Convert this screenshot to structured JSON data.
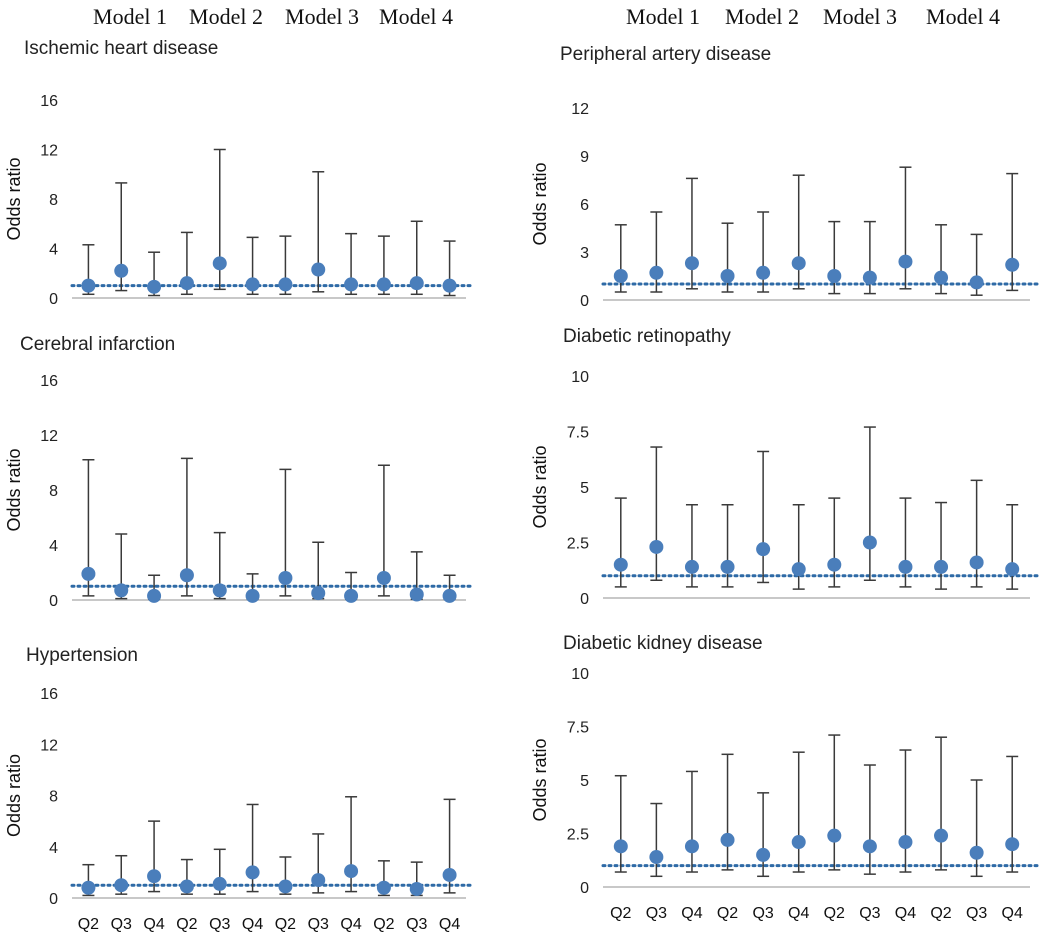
{
  "model_headers": {
    "left": [
      "Model 1",
      "Model 2",
      "Model 3",
      "Model 4"
    ],
    "right": [
      "Model 1",
      "Model 2",
      "Model 3",
      "Model 4"
    ]
  },
  "colors": {
    "marker": "#4a7ebb",
    "reference_line": "#2e6aa6",
    "error_bar": "#3a3a3a",
    "axis": "#a6a6a6"
  },
  "chart_data": [
    {
      "type": "scatter",
      "title": "Ischemic heart disease",
      "ylabel": "Odds ratio",
      "ylim": [
        0,
        16
      ],
      "yticks": [
        "0",
        "4",
        "8",
        "12",
        "16"
      ],
      "reference_line": 1,
      "categories": [
        "Q2",
        "Q3",
        "Q4",
        "Q2",
        "Q3",
        "Q4",
        "Q2",
        "Q3",
        "Q4",
        "Q2",
        "Q3",
        "Q4"
      ],
      "values": [
        1.0,
        2.2,
        0.9,
        1.2,
        2.8,
        1.1,
        1.1,
        2.3,
        1.1,
        1.1,
        1.2,
        1.0
      ],
      "upper": [
        4.3,
        9.3,
        3.7,
        5.3,
        12.0,
        4.9,
        5.0,
        10.2,
        5.2,
        5.0,
        6.2,
        4.6
      ],
      "lower": [
        0.3,
        0.6,
        0.2,
        0.3,
        0.7,
        0.3,
        0.3,
        0.5,
        0.3,
        0.3,
        0.3,
        0.2
      ],
      "show_category_labels": false
    },
    {
      "type": "scatter",
      "title": "Cerebral infarction",
      "ylabel": "Odds ratio",
      "ylim": [
        0,
        16
      ],
      "yticks": [
        "0",
        "4",
        "8",
        "12",
        "16"
      ],
      "reference_line": 1,
      "categories": [
        "Q2",
        "Q3",
        "Q4",
        "Q2",
        "Q3",
        "Q4",
        "Q2",
        "Q3",
        "Q4",
        "Q2",
        "Q3",
        "Q4"
      ],
      "values": [
        1.9,
        0.7,
        0.3,
        1.8,
        0.7,
        0.3,
        1.6,
        0.5,
        0.3,
        1.6,
        0.4,
        0.3
      ],
      "upper": [
        10.2,
        4.8,
        1.8,
        10.3,
        4.9,
        1.9,
        9.5,
        4.2,
        2.0,
        9.8,
        3.5,
        1.8
      ],
      "lower": [
        0.3,
        0.1,
        0.05,
        0.3,
        0.1,
        0.05,
        0.3,
        0.1,
        0.05,
        0.3,
        0.05,
        0.05
      ],
      "show_category_labels": false
    },
    {
      "type": "scatter",
      "title": "Hypertension",
      "ylabel": "Odds ratio",
      "ylim": [
        0,
        16
      ],
      "yticks": [
        "0",
        "4",
        "8",
        "12",
        "16"
      ],
      "reference_line": 1,
      "categories": [
        "Q2",
        "Q3",
        "Q4",
        "Q2",
        "Q3",
        "Q4",
        "Q2",
        "Q3",
        "Q4",
        "Q2",
        "Q3",
        "Q4"
      ],
      "values": [
        0.8,
        1.0,
        1.7,
        0.9,
        1.1,
        2.0,
        0.9,
        1.4,
        2.1,
        0.8,
        0.7,
        1.8
      ],
      "upper": [
        2.6,
        3.3,
        6.0,
        3.0,
        3.8,
        7.3,
        3.2,
        5.0,
        7.9,
        2.9,
        2.8,
        7.7
      ],
      "lower": [
        0.2,
        0.3,
        0.5,
        0.3,
        0.3,
        0.5,
        0.3,
        0.4,
        0.5,
        0.2,
        0.2,
        0.4
      ],
      "show_category_labels": true
    },
    {
      "type": "scatter",
      "title": "Peripheral artery disease",
      "ylabel": "Odds ratio",
      "ylim": [
        0,
        12
      ],
      "yticks": [
        "0",
        "3",
        "6",
        "9",
        "12"
      ],
      "reference_line": 1,
      "categories": [
        "Q2",
        "Q3",
        "Q4",
        "Q2",
        "Q3",
        "Q4",
        "Q2",
        "Q3",
        "Q4",
        "Q2",
        "Q3",
        "Q4"
      ],
      "values": [
        1.5,
        1.7,
        2.3,
        1.5,
        1.7,
        2.3,
        1.5,
        1.4,
        2.4,
        1.4,
        1.1,
        2.2
      ],
      "upper": [
        4.7,
        5.5,
        7.6,
        4.8,
        5.5,
        7.8,
        4.9,
        4.9,
        8.3,
        4.7,
        4.1,
        7.9
      ],
      "lower": [
        0.5,
        0.5,
        0.7,
        0.5,
        0.5,
        0.7,
        0.4,
        0.4,
        0.7,
        0.4,
        0.3,
        0.6
      ],
      "show_category_labels": false
    },
    {
      "type": "scatter",
      "title": "Diabetic retinopathy",
      "ylabel": "Odds ratio",
      "ylim": [
        0,
        10
      ],
      "yticks": [
        "0",
        "2.5",
        "5",
        "7.5",
        "10"
      ],
      "reference_line": 1,
      "categories": [
        "Q2",
        "Q3",
        "Q4",
        "Q2",
        "Q3",
        "Q4",
        "Q2",
        "Q3",
        "Q4",
        "Q2",
        "Q3",
        "Q4"
      ],
      "values": [
        1.5,
        2.3,
        1.4,
        1.4,
        2.2,
        1.3,
        1.5,
        2.5,
        1.4,
        1.4,
        1.6,
        1.3
      ],
      "upper": [
        4.5,
        6.8,
        4.2,
        4.2,
        6.6,
        4.2,
        4.5,
        7.7,
        4.5,
        4.3,
        5.3,
        4.2
      ],
      "lower": [
        0.5,
        0.8,
        0.5,
        0.5,
        0.7,
        0.4,
        0.5,
        0.8,
        0.5,
        0.4,
        0.5,
        0.4
      ],
      "show_category_labels": false
    },
    {
      "type": "scatter",
      "title": "Diabetic kidney disease",
      "ylabel": "Odds ratio",
      "ylim": [
        0,
        10
      ],
      "yticks": [
        "0",
        "2.5",
        "5",
        "7.5",
        "10"
      ],
      "reference_line": 1,
      "categories": [
        "Q2",
        "Q3",
        "Q4",
        "Q2",
        "Q3",
        "Q4",
        "Q2",
        "Q3",
        "Q4",
        "Q2",
        "Q3",
        "Q4"
      ],
      "values": [
        1.9,
        1.4,
        1.9,
        2.2,
        1.5,
        2.1,
        2.4,
        1.9,
        2.1,
        2.4,
        1.6,
        2.0
      ],
      "upper": [
        5.2,
        3.9,
        5.4,
        6.2,
        4.4,
        6.3,
        7.1,
        5.7,
        6.4,
        7.0,
        5.0,
        6.1
      ],
      "lower": [
        0.7,
        0.5,
        0.7,
        0.8,
        0.5,
        0.7,
        0.8,
        0.6,
        0.7,
        0.8,
        0.5,
        0.7
      ],
      "show_category_labels": true
    }
  ]
}
